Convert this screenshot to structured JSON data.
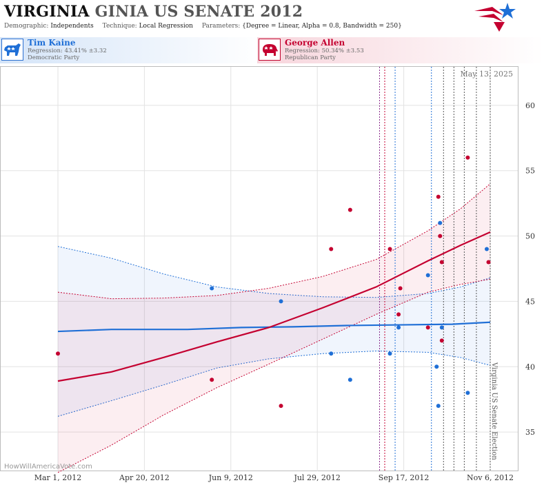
{
  "header": {
    "title_main": "VIRGINIA",
    "title_sub": "GINIA US SENATE 2012",
    "demographic_label": "Demographic:",
    "demographic_value": "Independents",
    "technique_label": "Technique:",
    "technique_value": "Local Regression",
    "parameters_label": "Parameters:",
    "parameters_value": "{Degree = Linear, Alpha = 0.8, Bandwidth = 250}"
  },
  "legend": {
    "dem": {
      "name": "Tim Kaine",
      "regression": "Regression: 43.41% ±3.32",
      "party": "Democratic Party",
      "color": "#1f6fd6"
    },
    "rep": {
      "name": "George Allen",
      "regression": "Regression: 50.34% ±3.53",
      "party": "Republican Party",
      "color": "#c40030"
    }
  },
  "watermark": "HowWillAmericaVote.com",
  "date_stamp": "May 13, 2025",
  "election_label": "Virginia US Senate Election",
  "chart_data": {
    "type": "scatter",
    "x_start": "2012-03-01",
    "x_end": "2012-11-06",
    "ylim": [
      32,
      63
    ],
    "y_ticks": [
      35,
      40,
      45,
      50,
      55,
      60
    ],
    "x_ticks": [
      "Mar 1, 2012",
      "Apr 20, 2012",
      "Jun 9, 2012",
      "Jul 29, 2012",
      "Sep 17, 2012",
      "Nov 6, 2012"
    ],
    "series": [
      {
        "name": "Tim Kaine",
        "color": "#1f6fd6",
        "points": [
          [
            "2012-05-29",
            46
          ],
          [
            "2012-07-08",
            45
          ],
          [
            "2012-08-06",
            41
          ],
          [
            "2012-08-17",
            39
          ],
          [
            "2012-09-09",
            41
          ],
          [
            "2012-09-14",
            43
          ],
          [
            "2012-10-01",
            47
          ],
          [
            "2012-10-06",
            40
          ],
          [
            "2012-10-07",
            37
          ],
          [
            "2012-10-08",
            51
          ],
          [
            "2012-10-09",
            43
          ],
          [
            "2012-10-24",
            38
          ],
          [
            "2012-11-04",
            49
          ]
        ],
        "fit": [
          [
            "2012-03-01",
            42.7
          ],
          [
            "2012-04-01",
            42.85
          ],
          [
            "2012-05-15",
            42.85
          ],
          [
            "2012-06-15",
            43.0
          ],
          [
            "2012-07-15",
            43.05
          ],
          [
            "2012-08-15",
            43.15
          ],
          [
            "2012-09-15",
            43.2
          ],
          [
            "2012-10-15",
            43.25
          ],
          [
            "2012-11-06",
            43.4
          ]
        ],
        "band_upper": [
          [
            "2012-03-01",
            49.2
          ],
          [
            "2012-04-01",
            48.3
          ],
          [
            "2012-05-01",
            47.1
          ],
          [
            "2012-06-01",
            46.1
          ],
          [
            "2012-07-01",
            45.6
          ],
          [
            "2012-08-01",
            45.35
          ],
          [
            "2012-09-01",
            45.3
          ],
          [
            "2012-10-01",
            45.6
          ],
          [
            "2012-10-20",
            46.1
          ],
          [
            "2012-11-06",
            46.8
          ]
        ],
        "band_lower": [
          [
            "2012-03-01",
            36.2
          ],
          [
            "2012-04-01",
            37.4
          ],
          [
            "2012-05-01",
            38.6
          ],
          [
            "2012-06-01",
            39.9
          ],
          [
            "2012-07-01",
            40.6
          ],
          [
            "2012-08-01",
            41.0
          ],
          [
            "2012-09-01",
            41.2
          ],
          [
            "2012-10-01",
            41.1
          ],
          [
            "2012-10-20",
            40.7
          ],
          [
            "2012-11-06",
            40.1
          ]
        ]
      },
      {
        "name": "George Allen",
        "color": "#c40030",
        "points": [
          [
            "2012-03-01",
            41
          ],
          [
            "2012-05-29",
            39
          ],
          [
            "2012-07-08",
            37
          ],
          [
            "2012-08-06",
            49
          ],
          [
            "2012-08-17",
            52
          ],
          [
            "2012-09-09",
            49
          ],
          [
            "2012-09-14",
            44
          ],
          [
            "2012-09-15",
            46
          ],
          [
            "2012-10-01",
            43
          ],
          [
            "2012-10-07",
            53
          ],
          [
            "2012-10-08",
            50
          ],
          [
            "2012-10-09",
            48
          ],
          [
            "2012-10-09",
            42
          ],
          [
            "2012-10-24",
            56
          ],
          [
            "2012-11-05",
            48
          ]
        ],
        "fit": [
          [
            "2012-03-01",
            38.9
          ],
          [
            "2012-04-01",
            39.6
          ],
          [
            "2012-05-01",
            40.7
          ],
          [
            "2012-06-01",
            41.9
          ],
          [
            "2012-07-01",
            43.0
          ],
          [
            "2012-08-01",
            44.5
          ],
          [
            "2012-09-01",
            46.1
          ],
          [
            "2012-10-01",
            48.1
          ],
          [
            "2012-10-20",
            49.3
          ],
          [
            "2012-11-06",
            50.3
          ]
        ],
        "band_upper": [
          [
            "2012-03-01",
            45.7
          ],
          [
            "2012-04-01",
            45.2
          ],
          [
            "2012-05-01",
            45.25
          ],
          [
            "2012-06-01",
            45.45
          ],
          [
            "2012-07-01",
            46.0
          ],
          [
            "2012-08-01",
            46.9
          ],
          [
            "2012-09-01",
            48.2
          ],
          [
            "2012-10-01",
            50.4
          ],
          [
            "2012-10-20",
            52.1
          ],
          [
            "2012-11-06",
            54.0
          ]
        ],
        "band_lower": [
          [
            "2012-03-01",
            31.9
          ],
          [
            "2012-04-01",
            34.0
          ],
          [
            "2012-05-01",
            36.3
          ],
          [
            "2012-06-01",
            38.4
          ],
          [
            "2012-07-01",
            40.2
          ],
          [
            "2012-08-01",
            42.1
          ],
          [
            "2012-09-01",
            44.0
          ],
          [
            "2012-10-01",
            45.7
          ],
          [
            "2012-10-20",
            46.3
          ],
          [
            "2012-11-06",
            46.7
          ]
        ]
      }
    ],
    "vertical_markers": [
      {
        "date": "2012-09-03",
        "color": "#8a2a8a"
      },
      {
        "date": "2012-09-06",
        "color": "#c40030"
      },
      {
        "date": "2012-09-12",
        "color": "#1f6fd6"
      },
      {
        "date": "2012-10-03",
        "color": "#1f6fd6"
      },
      {
        "date": "2012-10-10",
        "color": "#555555"
      },
      {
        "date": "2012-10-16",
        "color": "#555555"
      },
      {
        "date": "2012-10-22",
        "color": "#555555"
      },
      {
        "date": "2012-10-29",
        "color": "#555555"
      },
      {
        "date": "2012-11-06",
        "color": "#555555"
      }
    ]
  }
}
